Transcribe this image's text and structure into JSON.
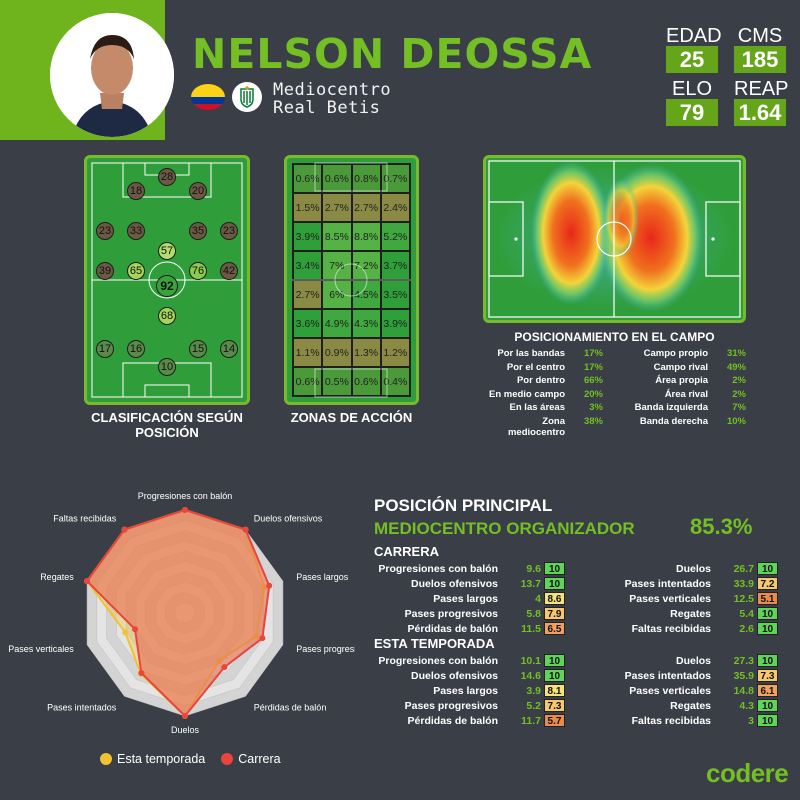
{
  "player": {
    "name": "NELSON DEOSSA",
    "position": "Mediocentro",
    "club": "Real Betis"
  },
  "stats": [
    {
      "label": "EDAD",
      "value": "25"
    },
    {
      "label": "CMS",
      "value": "185"
    },
    {
      "label": "ELO",
      "value": "79"
    },
    {
      "label": "REAP",
      "value": "1.64"
    }
  ],
  "classification": {
    "title": "CLASIFICACIÓN SEGÚN POSICIÓN",
    "nodes": [
      {
        "v": "28",
        "c": "#6b5944"
      },
      {
        "v": "18",
        "c": "#6b5944"
      },
      {
        "v": "20",
        "c": "#6b5944"
      },
      {
        "v": "23",
        "c": "#6b5944"
      },
      {
        "v": "33",
        "c": "#6b5944"
      },
      {
        "v": "35",
        "c": "#6b5944"
      },
      {
        "v": "23",
        "c": "#6b5944"
      },
      {
        "v": "57",
        "c": "#b2dd6a"
      },
      {
        "v": "39",
        "c": "#6b5944"
      },
      {
        "v": "65",
        "c": "#a4d55a"
      },
      {
        "v": "92",
        "c": "#3aa23a"
      },
      {
        "v": "76",
        "c": "#8acb4a"
      },
      {
        "v": "42",
        "c": "#6b5944"
      },
      {
        "v": "68",
        "c": "#a4d55a"
      },
      {
        "v": "17",
        "c": "#5a8a4a"
      },
      {
        "v": "16",
        "c": "#5a8a4a"
      },
      {
        "v": "15",
        "c": "#5a8a4a"
      },
      {
        "v": "14",
        "c": "#5a8a4a"
      },
      {
        "v": "10",
        "c": "#5a8a4a"
      }
    ]
  },
  "zones": {
    "title": "ZONAS DE ACCIÓN",
    "rows": [
      [
        "0.6%",
        "0.6%",
        "0.8%",
        "0.7%"
      ],
      [
        "1.5%",
        "2.7%",
        "2.7%",
        "2.4%"
      ],
      [
        "3.9%",
        "8.5%",
        "8.8%",
        "5.2%"
      ],
      [
        "3.4%",
        "7%",
        "7.2%",
        "3.7%"
      ],
      [
        "2.7%",
        "6%",
        "4.5%",
        "3.5%"
      ],
      [
        "3.6%",
        "4.9%",
        "4.3%",
        "3.9%"
      ],
      [
        "1.1%",
        "0.9%",
        "1.3%",
        "1.2%"
      ],
      [
        "0.6%",
        "0.5%",
        "0.6%",
        "0.4%"
      ]
    ]
  },
  "positioning": {
    "title": "POSICIONAMIENTO EN EL CAMPO",
    "left": [
      [
        "Por las bandas",
        "17%"
      ],
      [
        "Por el centro",
        "17%"
      ],
      [
        "Por dentro",
        "66%"
      ],
      [
        "En medio campo",
        "20%"
      ],
      [
        "En las áreas",
        "3%"
      ],
      [
        "Zona mediocentro",
        "38%"
      ]
    ],
    "right": [
      [
        "Campo propio",
        "31%"
      ],
      [
        "Campo rival",
        "49%"
      ],
      [
        "Área propia",
        "2%"
      ],
      [
        "Área rival",
        "2%"
      ],
      [
        "Banda izquierda",
        "7%"
      ],
      [
        "Banda derecha",
        "10%"
      ]
    ]
  },
  "radar": {
    "axes": [
      "Progresiones con balón",
      "Duelos ofensivos",
      "Pases largos",
      "Pases progresivos",
      "Pérdidas de balón",
      "Duelos",
      "Pases intentados",
      "Pases verticales",
      "Regates",
      "Faltas recibidas"
    ],
    "season": [
      10,
      10,
      8.1,
      7.3,
      5.7,
      10,
      7.3,
      6.1,
      10,
      10
    ],
    "career": [
      10,
      10,
      8.6,
      7.9,
      6.5,
      10,
      7.2,
      5.1,
      10,
      10
    ],
    "legend_season": "Esta temporada",
    "legend_career": "Carrera",
    "season_color": "#f1c232",
    "career_color": "#e8453c"
  },
  "main_position": {
    "title": "POSICIÓN PRINCIPAL",
    "role": "MEDIOCENTRO ORGANIZADOR",
    "pct": "85.3%"
  },
  "career": {
    "title": "CARRERA",
    "left": [
      [
        "Progresiones con balón",
        "9.6",
        "10"
      ],
      [
        "Duelos ofensivos",
        "13.7",
        "10"
      ],
      [
        "Pases largos",
        "4",
        "8.6"
      ],
      [
        "Pases progresivos",
        "5.8",
        "7.9"
      ],
      [
        "Pérdidas de balón",
        "11.5",
        "6.5"
      ]
    ],
    "right": [
      [
        "Duelos",
        "26.7",
        "10"
      ],
      [
        "Pases intentados",
        "33.9",
        "7.2"
      ],
      [
        "Pases verticales",
        "12.5",
        "5.1"
      ],
      [
        "Regates",
        "5.4",
        "10"
      ],
      [
        "Faltas recibidas",
        "2.6",
        "10"
      ]
    ]
  },
  "season": {
    "title": "ESTA TEMPORADA",
    "left": [
      [
        "Progresiones con balón",
        "10.1",
        "10"
      ],
      [
        "Duelos ofensivos",
        "14.6",
        "10"
      ],
      [
        "Pases largos",
        "3.9",
        "8.1"
      ],
      [
        "Pases progresivos",
        "5.2",
        "7.3"
      ],
      [
        "Pérdidas de balón",
        "11.7",
        "5.7"
      ]
    ],
    "right": [
      [
        "Duelos",
        "27.3",
        "10"
      ],
      [
        "Pases intentados",
        "35.9",
        "7.3"
      ],
      [
        "Pases verticales",
        "14.8",
        "6.1"
      ],
      [
        "Regates",
        "4.3",
        "10"
      ],
      [
        "Faltas recibidas",
        "3",
        "10"
      ]
    ]
  },
  "brand": "codere"
}
